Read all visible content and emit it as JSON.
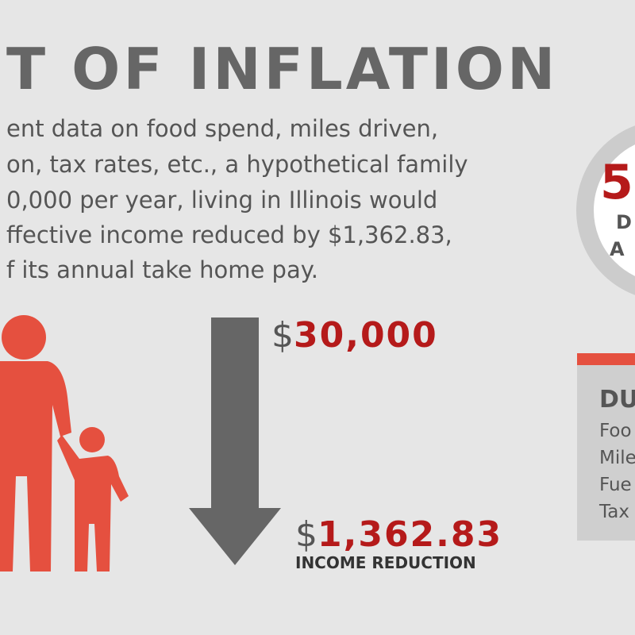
{
  "title": "T OF INFLATION",
  "paragraph": [
    "ent data on food spend, miles driven,",
    "on, tax rates, etc., a hypothetical family",
    "0,000 per year, living in Illinois would",
    "ffective income reduced by $1,362.83,",
    "f its annual take home pay."
  ],
  "income": {
    "symbol": "$",
    "amount": "30,000"
  },
  "reduction": {
    "symbol": "$",
    "amount": "1,362.83",
    "label": "INCOME REDUCTION"
  },
  "badge": {
    "number": "5",
    "line1": "D",
    "line2": "A"
  },
  "details": {
    "heading": "DU",
    "items": [
      "Foo",
      "Mile",
      "Fue",
      "Tax"
    ]
  }
}
